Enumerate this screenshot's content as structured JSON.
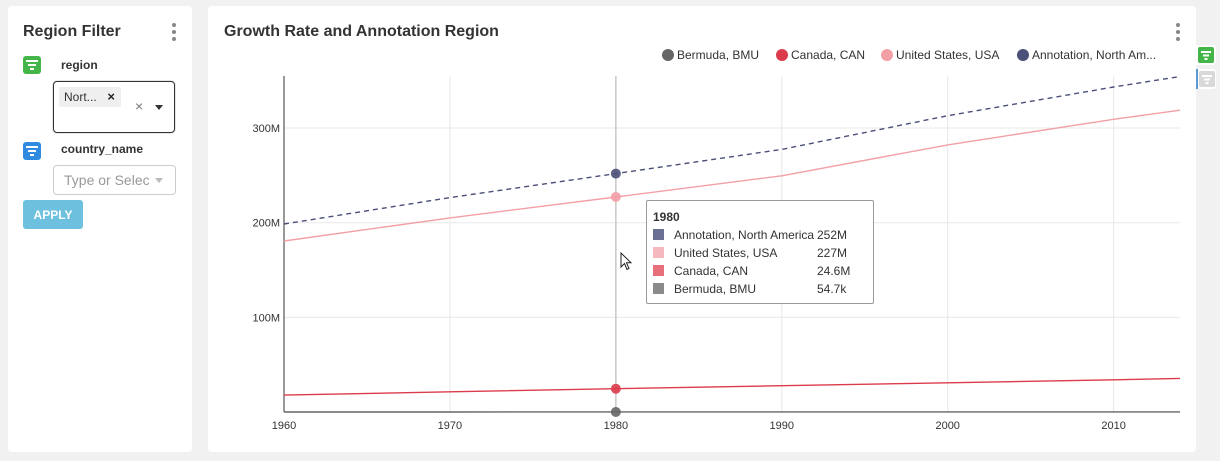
{
  "filter_panel": {
    "title": "Region Filter",
    "region_label": "region",
    "region_selected_tag": "Nort...",
    "region_tag_remove": "×",
    "region_clear": "×",
    "country_label": "country_name",
    "country_placeholder": "Type or Select",
    "apply_label": "APPLY",
    "region_icon_color": "#44b549",
    "country_icon_color": "#2f8ae0"
  },
  "chart_panel": {
    "title": "Growth Rate and Annotation Region"
  },
  "legend": [
    {
      "label": "Bermuda, BMU",
      "color": "#666666"
    },
    {
      "label": "Canada, CAN",
      "color": "#dc3b4b"
    },
    {
      "label": "United States, USA",
      "color": "#f2a0a6"
    },
    {
      "label": "Annotation, North Am...",
      "color": "#4a5078"
    }
  ],
  "tooltip": {
    "title": "1980",
    "rows": [
      {
        "name": "Annotation, North America",
        "value": "252M",
        "color": "#6b6f94"
      },
      {
        "name": "United States, USA",
        "value": "227M",
        "color": "#f5b9bd"
      },
      {
        "name": "Canada, CAN",
        "value": "24.6M",
        "color": "#e8707d"
      },
      {
        "name": "Bermuda, BMU",
        "value": "54.7k",
        "color": "#8a8a8a"
      }
    ]
  },
  "chart_data": {
    "type": "line",
    "title": "Growth Rate and Annotation Region",
    "xlim": [
      1960,
      2014
    ],
    "ylim": [
      0,
      355000000
    ],
    "x_ticks": [
      1960,
      1970,
      1980,
      1990,
      2000,
      2010
    ],
    "x_tick_labels": [
      "1960",
      "1970",
      "1980",
      "1990",
      "2000",
      "2010"
    ],
    "y_ticks": [
      100000000,
      200000000,
      300000000
    ],
    "y_tick_labels": [
      "100M",
      "200M",
      "300M"
    ],
    "grid": true,
    "legend_position": "top-right",
    "highlight_x": 1980,
    "series": [
      {
        "name": "Bermuda, BMU",
        "color": "#666666",
        "style": "solid",
        "x": [
          1960,
          1970,
          1980,
          1990,
          2000,
          2010,
          2014
        ],
        "y": [
          44400,
          52000,
          54700,
          61000,
          63000,
          65000,
          65000
        ]
      },
      {
        "name": "Canada, CAN",
        "color": "#dc3b4b",
        "style": "solid",
        "x": [
          1960,
          1970,
          1980,
          1990,
          2000,
          2010,
          2014
        ],
        "y": [
          17900000,
          21300000,
          24600000,
          27800000,
          30800000,
          34000000,
          35500000
        ]
      },
      {
        "name": "United States, USA",
        "color": "#f2a0a6",
        "style": "solid",
        "x": [
          1960,
          1970,
          1980,
          1990,
          2000,
          2010,
          2014
        ],
        "y": [
          180700000,
          205100000,
          227200000,
          249600000,
          282200000,
          309300000,
          318900000
        ]
      },
      {
        "name": "Annotation, North America",
        "color": "#4a5078",
        "style": "dashed",
        "x": [
          1960,
          1970,
          1980,
          1990,
          2000,
          2010,
          2014
        ],
        "y": [
          198600000,
          226500000,
          251900000,
          277500000,
          313100000,
          343400000,
          354500000
        ]
      }
    ]
  }
}
